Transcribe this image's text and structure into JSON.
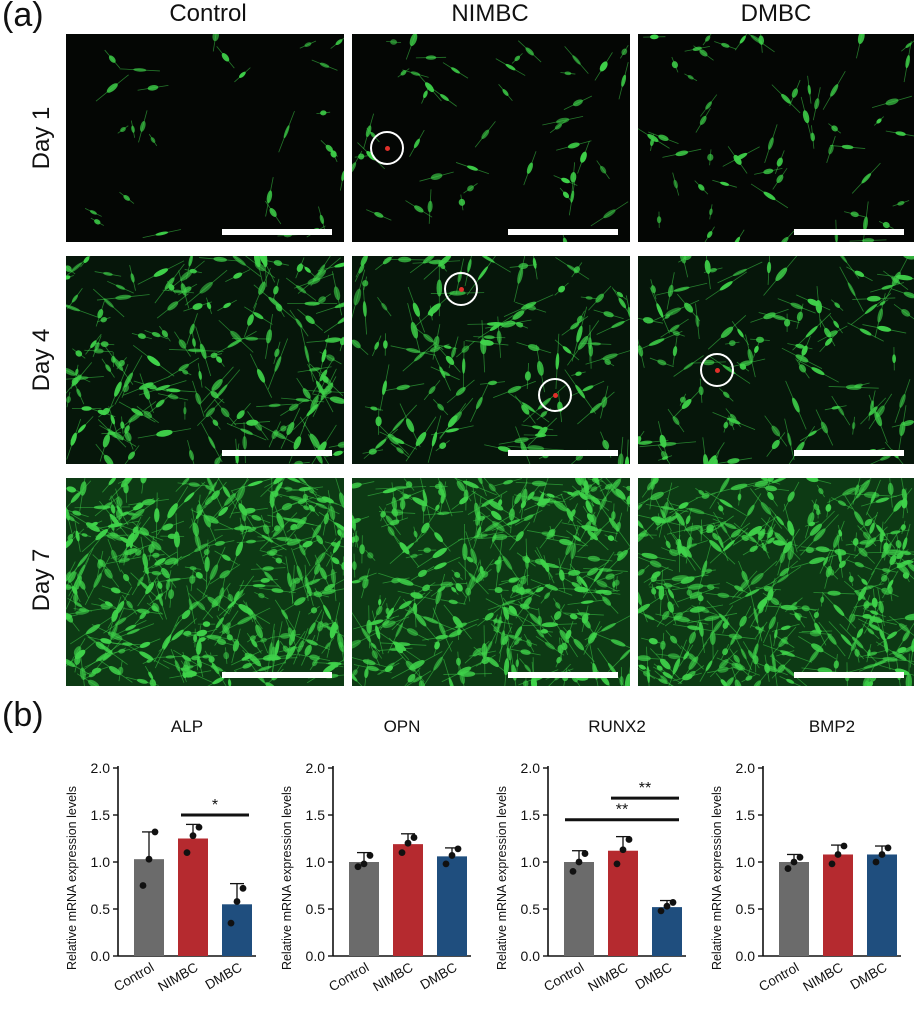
{
  "panel_a": {
    "label": "(a)",
    "columns": [
      "Control",
      "NIMBC",
      "DMBC"
    ],
    "rows": [
      "Day 1",
      "Day 4",
      "Day 7"
    ],
    "colors": {
      "background": "#040604",
      "cell": "#3fd24a",
      "dead_cell": "#e0302a",
      "scale_bar": "#ffffff"
    }
  },
  "panel_b": {
    "label": "(b)"
  },
  "chart_data": [
    {
      "type": "bar",
      "title": "ALP",
      "categories": [
        "Control",
        "NIMBC",
        "DMBC"
      ],
      "values": [
        1.03,
        1.25,
        0.55
      ],
      "errors": [
        0.29,
        0.15,
        0.22
      ],
      "points": [
        [
          0.75,
          1.03,
          1.32
        ],
        [
          1.1,
          1.28,
          1.37
        ],
        [
          0.35,
          0.58,
          0.72
        ]
      ],
      "ylabel": "Relative mRNA expression levels",
      "ylim": [
        0,
        2.0
      ],
      "yticks": [
        "0.0",
        "0.5",
        "1.0",
        "1.5",
        "2.0"
      ],
      "significance": [
        {
          "from": 1,
          "to": 2,
          "label": "*"
        }
      ]
    },
    {
      "type": "bar",
      "title": "OPN",
      "categories": [
        "Control",
        "NIMBC",
        "DMBC"
      ],
      "values": [
        1.0,
        1.19,
        1.06
      ],
      "errors": [
        0.1,
        0.11,
        0.09
      ],
      "points": [
        [
          0.95,
          0.98,
          1.07
        ],
        [
          1.1,
          1.2,
          1.26
        ],
        [
          0.98,
          1.07,
          1.14
        ]
      ],
      "ylabel": "Relative mRNA expression levels",
      "ylim": [
        0,
        2.0
      ],
      "yticks": [
        "0.0",
        "0.5",
        "1.0",
        "1.5",
        "2.0"
      ],
      "significance": []
    },
    {
      "type": "bar",
      "title": "RUNX2",
      "categories": [
        "Control",
        "NIMBC",
        "DMBC"
      ],
      "values": [
        1.0,
        1.12,
        0.52
      ],
      "errors": [
        0.12,
        0.15,
        0.07
      ],
      "points": [
        [
          0.9,
          1.0,
          1.09
        ],
        [
          0.98,
          1.13,
          1.24
        ],
        [
          0.48,
          0.53,
          0.57
        ]
      ],
      "ylabel": "Relative mRNA expression levels",
      "ylim": [
        0,
        2.0
      ],
      "yticks": [
        "0.0",
        "0.5",
        "1.0",
        "1.5",
        "2.0"
      ],
      "significance": [
        {
          "from": 0,
          "to": 2,
          "label": "**"
        },
        {
          "from": 1,
          "to": 2,
          "label": "**"
        }
      ]
    },
    {
      "type": "bar",
      "title": "BMP2",
      "categories": [
        "Control",
        "NIMBC",
        "DMBC"
      ],
      "values": [
        1.0,
        1.08,
        1.08
      ],
      "errors": [
        0.08,
        0.1,
        0.09
      ],
      "points": [
        [
          0.93,
          1.0,
          1.05
        ],
        [
          0.98,
          1.08,
          1.17
        ],
        [
          1.0,
          1.08,
          1.15
        ]
      ],
      "ylabel": "Relative mRNA expression levels",
      "ylim": [
        0,
        2.0
      ],
      "yticks": [
        "0.0",
        "0.5",
        "1.0",
        "1.5",
        "2.0"
      ],
      "significance": []
    }
  ],
  "bar_colors": [
    "#6b6b6b",
    "#b52a2f",
    "#1f4e7e"
  ]
}
